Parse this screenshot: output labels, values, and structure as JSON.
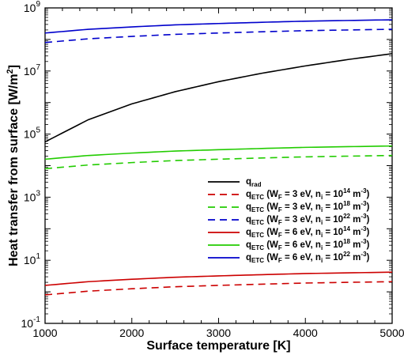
{
  "chart_data": {
    "type": "line",
    "xlabel": "Surface temperature [K]",
    "ylabel": "Heat transfer from surface [W/m²]",
    "xlim": [
      1000,
      5000
    ],
    "ylim": [
      0.1,
      1000000000
    ],
    "yscale": "log",
    "grid": false,
    "legend_placement": "center-right",
    "x_ticks": [
      "1000",
      "2000",
      "3000",
      "4000",
      "5000"
    ],
    "y_ticks": [
      {
        "value": 0.1,
        "base": "10",
        "exp": "-1"
      },
      {
        "value": 10,
        "base": "10",
        "exp": "1"
      },
      {
        "value": 1000,
        "base": "10",
        "exp": "3"
      },
      {
        "value": 100000,
        "base": "10",
        "exp": "5"
      },
      {
        "value": 10000000,
        "base": "10",
        "exp": "7"
      },
      {
        "value": 1000000000,
        "base": "10",
        "exp": "9"
      }
    ],
    "x": [
      1000,
      1500,
      2000,
      2500,
      3000,
      3500,
      4000,
      4500,
      5000
    ],
    "series": [
      {
        "label": {
          "q": "q",
          "sub": "rad",
          "text": ""
        },
        "color": "#000000",
        "dash": "solid",
        "values": [
          56700,
          287000,
          907000,
          2210000,
          4590000,
          8510000,
          14500000,
          23300000,
          35400000
        ]
      },
      {
        "label": {
          "q": "q",
          "sub": "ETC",
          "text": " (W",
          "wsub": "F",
          "rest": " = 3 eV, n",
          "nsub": "i",
          "eq": " = 10",
          "exp": "14",
          "unit": " m",
          "uexp": "-3",
          "close": ")"
        },
        "color": "#cc0000",
        "dash": "dashed",
        "values": [
          0.8,
          1.05,
          1.25,
          1.45,
          1.6,
          1.75,
          1.9,
          2.0,
          2.1
        ]
      },
      {
        "label": {
          "q": "q",
          "sub": "ETC",
          "text": " (W",
          "wsub": "F",
          "rest": " = 3 eV, n",
          "nsub": "i",
          "eq": " = 10",
          "exp": "18",
          "unit": " m",
          "uexp": "-3",
          "close": ")"
        },
        "color": "#22cc00",
        "dash": "dashed",
        "values": [
          8000,
          10500,
          12500,
          14500,
          16000,
          17500,
          19000,
          20000,
          21000
        ]
      },
      {
        "label": {
          "q": "q",
          "sub": "ETC",
          "text": " (W",
          "wsub": "F",
          "rest": " = 3 eV, n",
          "nsub": "i",
          "eq": " = 10",
          "exp": "22",
          "unit": " m",
          "uexp": "-3",
          "close": ")"
        },
        "color": "#0000cc",
        "dash": "dashed",
        "values": [
          80000000,
          105000000,
          125000000,
          145000000,
          160000000,
          175000000,
          190000000,
          200000000,
          210000000
        ]
      },
      {
        "label": {
          "q": "q",
          "sub": "ETC",
          "text": " (W",
          "wsub": "F",
          "rest": " = 6 eV, n",
          "nsub": "i",
          "eq": " = 10",
          "exp": "14",
          "unit": " m",
          "uexp": "-3",
          "close": ")"
        },
        "color": "#cc0000",
        "dash": "solid",
        "values": [
          1.6,
          2.1,
          2.5,
          2.9,
          3.2,
          3.5,
          3.8,
          4.0,
          4.2
        ]
      },
      {
        "label": {
          "q": "q",
          "sub": "ETC",
          "text": " (W",
          "wsub": "F",
          "rest": " = 6 eV, n",
          "nsub": "i",
          "eq": " = 10",
          "exp": "18",
          "unit": " m",
          "uexp": "-3",
          "close": ")"
        },
        "color": "#22cc00",
        "dash": "solid",
        "values": [
          16000,
          21000,
          25000,
          29000,
          32000,
          35000,
          38000,
          40000,
          42000
        ]
      },
      {
        "label": {
          "q": "q",
          "sub": "ETC",
          "text": " (W",
          "wsub": "F",
          "rest": " = 6 eV, n",
          "nsub": "i",
          "eq": " = 10",
          "exp": "22",
          "unit": " m",
          "uexp": "-3",
          "close": ")"
        },
        "color": "#0000cc",
        "dash": "solid",
        "values": [
          160000000,
          210000000,
          250000000,
          290000000,
          320000000,
          350000000,
          380000000,
          400000000,
          420000000
        ]
      }
    ]
  }
}
